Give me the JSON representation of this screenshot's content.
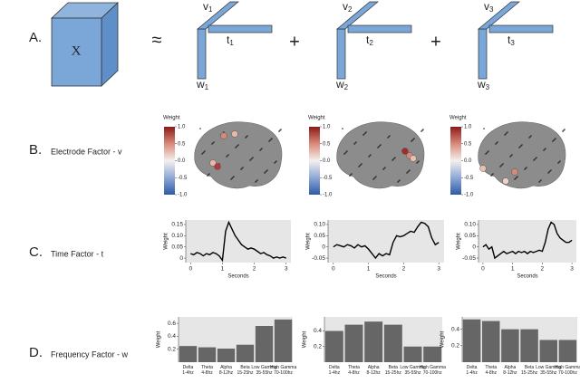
{
  "panels": {
    "a": {
      "letter": "A.",
      "tensor": "X",
      "approx": "≈",
      "plus": "+",
      "factors": [
        {
          "v": "v",
          "t": "t",
          "w": "w",
          "index": "1"
        },
        {
          "v": "v",
          "t": "t",
          "w": "w",
          "index": "2"
        },
        {
          "v": "v",
          "t": "t",
          "w": "w",
          "index": "3"
        }
      ]
    },
    "b": {
      "letter": "B.",
      "label": "Electrode Factor - v"
    },
    "c": {
      "letter": "C.",
      "label": "Time Factor - t"
    },
    "d": {
      "letter": "D.",
      "label": "Frequency Factor - w"
    }
  },
  "brains": [
    {
      "legend_title": "Weight",
      "ticks": [
        {
          "value": 1,
          "label": "1.0"
        },
        0.5,
        {
          "value": 0,
          "label": "0.0"
        },
        -0.5,
        {
          "value": -1,
          "label": "-1.0"
        }
      ]
    },
    {
      "legend_title": "Weight",
      "ticks": [
        {
          "value": 1,
          "label": "1.0"
        },
        0.5,
        {
          "value": 0,
          "label": "0.0"
        },
        -0.5,
        {
          "value": -1,
          "label": "-1.0"
        }
      ]
    },
    {
      "legend_title": "Weight",
      "ticks": [
        {
          "value": 1,
          "label": "1.0"
        },
        0.5,
        {
          "value": 0,
          "label": "0.0"
        },
        -0.5,
        {
          "value": -1,
          "label": "-1.0"
        }
      ]
    }
  ],
  "chart_data": [
    {
      "type": "line",
      "x_label": "Seconds",
      "y_label": "Weight",
      "color": "#000",
      "xlim": [
        -0.15,
        3.15
      ],
      "xticks": [
        0,
        1,
        2,
        3
      ],
      "ylim": [
        -0.02,
        0.17
      ],
      "yticks": [
        0,
        0.05,
        {
          "value": 0.1,
          "label": "0.10"
        },
        0.15
      ],
      "x": [
        0,
        0.1,
        0.2,
        0.3,
        0.4,
        0.5,
        0.6,
        0.7,
        0.8,
        0.9,
        1,
        1.1,
        1.2,
        1.3,
        1.4,
        1.5,
        1.6,
        1.7,
        1.8,
        1.9,
        2,
        2.1,
        2.2,
        2.3,
        2.4,
        2.5,
        2.6,
        2.7,
        2.8,
        2.9,
        3
      ],
      "values": [
        0.02,
        0.015,
        0.025,
        0.02,
        0.01,
        0.02,
        0.015,
        0.025,
        0.02,
        0.01,
        -0.01,
        0.12,
        0.16,
        0.13,
        0.1,
        0.08,
        0.06,
        0.05,
        0.04,
        0.045,
        0.04,
        0.03,
        0.02,
        0.025,
        0.015,
        0.01,
        0,
        0.005,
        0,
        0.005,
        0
      ]
    },
    {
      "type": "line",
      "x_label": "Seconds",
      "y_label": "Weight",
      "color": "#000",
      "xlim": [
        -0.15,
        3.15
      ],
      "xticks": [
        0,
        1,
        2,
        3
      ],
      "ylim": [
        -0.07,
        0.12
      ],
      "yticks": [
        -0.05,
        0,
        0.05,
        {
          "value": 0.1,
          "label": "0.10"
        }
      ],
      "x": [
        0,
        0.1,
        0.2,
        0.3,
        0.4,
        0.5,
        0.6,
        0.7,
        0.8,
        0.9,
        1,
        1.1,
        1.2,
        1.3,
        1.4,
        1.5,
        1.6,
        1.7,
        1.8,
        1.9,
        2,
        2.1,
        2.2,
        2.3,
        2.4,
        2.5,
        2.6,
        2.7,
        2.8,
        2.9,
        3
      ],
      "values": [
        0,
        0.01,
        0.005,
        0,
        0.01,
        0.005,
        -0.005,
        0.01,
        0,
        0.005,
        -0.01,
        -0.03,
        -0.05,
        -0.03,
        -0.04,
        -0.03,
        -0.035,
        0.02,
        0.05,
        0.045,
        0.05,
        0.06,
        0.07,
        0.065,
        0.09,
        0.11,
        0.105,
        0.09,
        0.04,
        0.01,
        0.02
      ]
    },
    {
      "type": "line",
      "x_label": "Seconds",
      "y_label": "Weight",
      "color": "#000",
      "xlim": [
        -0.15,
        3.15
      ],
      "xticks": [
        0,
        1,
        2,
        3
      ],
      "ylim": [
        -0.07,
        0.12
      ],
      "yticks": [
        -0.05,
        0,
        0.05,
        {
          "value": 0.1,
          "label": "0.10"
        }
      ],
      "x": [
        0,
        0.1,
        0.2,
        0.3,
        0.4,
        0.5,
        0.6,
        0.7,
        0.8,
        0.9,
        1,
        1.1,
        1.2,
        1.3,
        1.4,
        1.5,
        1.6,
        1.7,
        1.8,
        1.9,
        2,
        2.1,
        2.2,
        2.3,
        2.4,
        2.5,
        2.6,
        2.7,
        2.8,
        2.9,
        3
      ],
      "values": [
        0,
        0.01,
        -0.01,
        0,
        -0.05,
        -0.04,
        -0.03,
        -0.02,
        -0.03,
        -0.025,
        -0.02,
        -0.03,
        -0.02,
        -0.025,
        -0.02,
        -0.03,
        -0.02,
        -0.025,
        -0.02,
        -0.015,
        -0.02,
        0.02,
        0.08,
        0.11,
        0.1,
        0.06,
        0.04,
        0.03,
        0.02,
        0.02,
        0.03
      ]
    },
    {
      "type": "bar",
      "y_label": "Weight",
      "color": "#666666",
      "ylim": [
        0,
        0.7
      ],
      "yticks": [
        0.2,
        0.4,
        0.6
      ],
      "categories": [
        "Delta 1-4hz",
        "Theta 4-8hz",
        "Alpha 8-12hz",
        "Beta 15-25hz",
        "Low Gamma 35-55hz",
        "High Gamma 70-100hz"
      ],
      "values": [
        0.25,
        0.23,
        0.21,
        0.27,
        0.56,
        0.66
      ]
    },
    {
      "type": "bar",
      "y_label": "Weight",
      "color": "#666666",
      "ylim": [
        0,
        0.58
      ],
      "yticks": [
        0.2,
        0.4
      ],
      "categories": [
        "Delta 1-4hz",
        "Theta 4-8hz",
        "Alpha 8-12hz",
        "Beta 15-25hz",
        "Low Gamma 35-55hz",
        "High Gamma 70-100hz"
      ],
      "values": [
        0.4,
        0.48,
        0.52,
        0.48,
        0.2,
        0.2
      ]
    },
    {
      "type": "bar",
      "y_label": "Weight",
      "color": "#666666",
      "ylim": [
        0,
        0.55
      ],
      "yticks": [
        0.2,
        0.4
      ],
      "categories": [
        "Delta 1-4hz",
        "Theta 4-8hz",
        "Alpha 8-12hz",
        "Beta 15-25hz",
        "Low Gamma 35-55hz",
        "High Gamma 70-100hz"
      ],
      "values": [
        0.52,
        0.5,
        0.4,
        0.4,
        0.27,
        0.27
      ]
    }
  ]
}
